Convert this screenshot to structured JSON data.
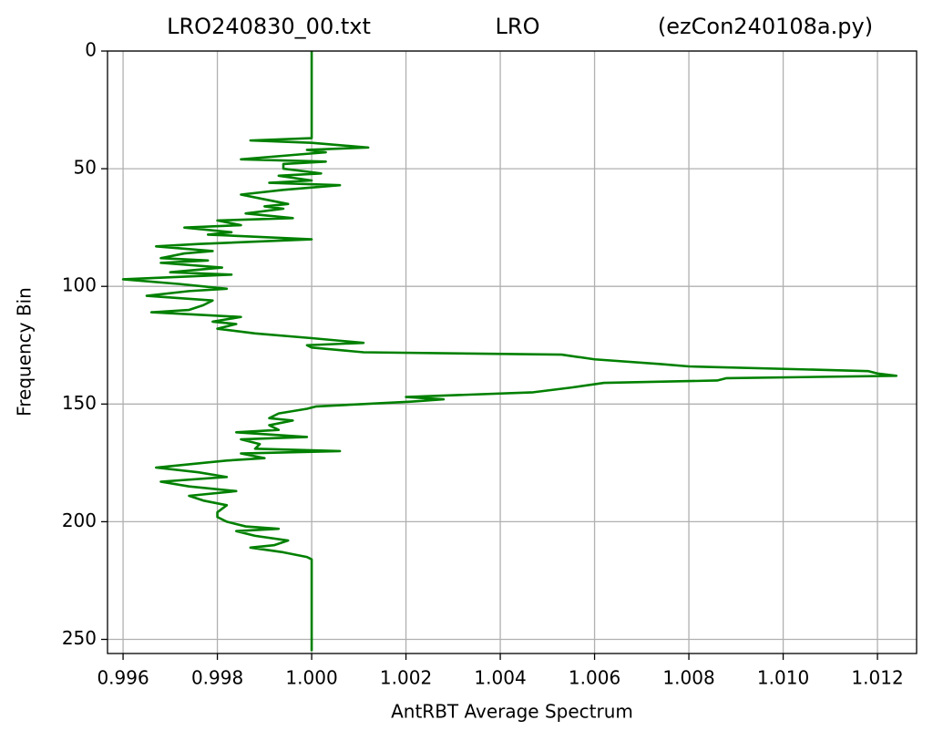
{
  "chart_data": {
    "type": "line",
    "titles": [
      "LRO240830_00.txt",
      "LRO",
      "(ezCon240108a.py)"
    ],
    "xlabel": "AntRBT Average Spectrum",
    "ylabel": "Frequency Bin",
    "color": "#008000",
    "grid": true,
    "y_inverted": true,
    "xlim": [
      0.99567,
      1.01283
    ],
    "ylim": [
      256,
      0
    ],
    "xticks": [
      0.996,
      0.998,
      {
        "value": 1,
        "label": "1.000"
      },
      1.002,
      1.004,
      1.006,
      1.008,
      {
        "value": 1.01,
        "label": "1.010"
      },
      1.012
    ],
    "yticks": [
      0,
      50,
      100,
      150,
      200,
      250
    ],
    "x": [
      0,
      37,
      38,
      39,
      41,
      42,
      43,
      44,
      46,
      47,
      48,
      50,
      52,
      53,
      55,
      56,
      57,
      59,
      61,
      63,
      65,
      66,
      67,
      69,
      71,
      72,
      74,
      75,
      77,
      78,
      80,
      82,
      83,
      85,
      86,
      88,
      89,
      90,
      92,
      94,
      95,
      97,
      99,
      101,
      102,
      104,
      106,
      108,
      110,
      111,
      113,
      115,
      116,
      118,
      120,
      122,
      124,
      125,
      126,
      128,
      129,
      131,
      133,
      134,
      136,
      137,
      138,
      139,
      140,
      141,
      143,
      145,
      147,
      148,
      149,
      150,
      151,
      152,
      154,
      156,
      157,
      159,
      161,
      162,
      164,
      165,
      167,
      169,
      170,
      171,
      173,
      174,
      177,
      179,
      181,
      183,
      185,
      187,
      189,
      191,
      193,
      196,
      198,
      200,
      202,
      203,
      204,
      206,
      208,
      210,
      211,
      213,
      215,
      216,
      255
    ],
    "values": [
      1.0,
      1.0,
      0.9987,
      1.0,
      1.0012,
      0.9999,
      1.0003,
      0.9997,
      0.9985,
      1.0003,
      0.9994,
      0.9994,
      1.0002,
      0.9993,
      1.0,
      0.9991,
      1.0006,
      0.9994,
      0.9985,
      0.999,
      0.9995,
      0.999,
      0.9994,
      0.9986,
      0.9996,
      0.998,
      0.9985,
      0.9973,
      0.9983,
      0.9978,
      1.0,
      0.9976,
      0.9967,
      0.9979,
      0.9973,
      0.9968,
      0.9978,
      0.9968,
      0.9981,
      0.997,
      0.9983,
      0.996,
      0.9972,
      0.9982,
      0.9974,
      0.9965,
      0.9979,
      0.9977,
      0.9974,
      0.9966,
      0.9985,
      0.9979,
      0.9984,
      0.998,
      0.9988,
      1.0,
      1.0011,
      0.9999,
      1.0,
      1.0011,
      1.0053,
      1.006,
      1.0074,
      1.008,
      1.0118,
      1.012,
      1.0124,
      1.0088,
      1.0086,
      1.0062,
      1.0055,
      1.0047,
      1.002,
      1.0028,
      1.0021,
      1.0011,
      1.0001,
      0.9999,
      0.9993,
      0.9991,
      0.9996,
      0.9991,
      0.9993,
      0.9984,
      0.9999,
      0.9985,
      0.9989,
      0.9988,
      1.0006,
      0.9985,
      0.999,
      0.9982,
      0.9967,
      0.9976,
      0.9982,
      0.9968,
      0.9974,
      0.9984,
      0.9974,
      0.9977,
      0.9982,
      0.998,
      0.998,
      0.9982,
      0.9986,
      0.9993,
      0.9984,
      0.9988,
      0.9995,
      0.9992,
      0.9987,
      0.9994,
      0.9999,
      1.0,
      1.0
    ]
  }
}
